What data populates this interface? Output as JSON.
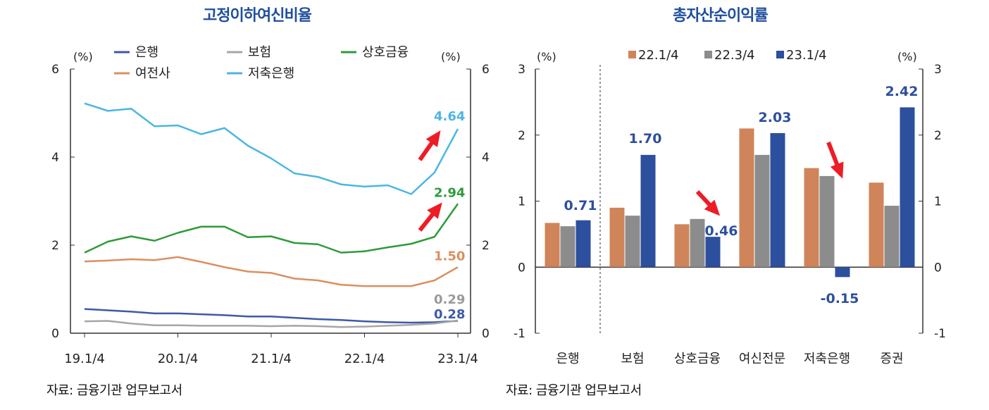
{
  "left": {
    "title": "고정이하여신비율",
    "source": "자료: 금융기관 업무보고서",
    "unit_left": "(%)",
    "unit_right": "(%)"
  },
  "right": {
    "title": "총자산순이익률",
    "source": "자료: 금융기관 업무보고서",
    "unit_left": "(%)",
    "unit_right": "(%)"
  },
  "chart_data": [
    {
      "type": "line",
      "title": "고정이하여신비율",
      "ylabel": "(%)",
      "ylim": [
        0,
        6
      ],
      "yticks": [
        0,
        2,
        4,
        6
      ],
      "x": [
        "19.1/4",
        "19.2/4",
        "19.3/4",
        "19.4/4",
        "20.1/4",
        "20.2/4",
        "20.3/4",
        "20.4/4",
        "21.1/4",
        "21.2/4",
        "21.3/4",
        "21.4/4",
        "22.1/4",
        "22.2/4",
        "22.3/4",
        "22.4/4",
        "23.1/4"
      ],
      "xticks": [
        "19.1/4",
        "20.1/4",
        "21.1/4",
        "22.1/4",
        "23.1/4"
      ],
      "legend": "top",
      "series": [
        {
          "name": "은행",
          "color": "#3d5aa6",
          "values": [
            0.55,
            0.52,
            0.49,
            0.45,
            0.45,
            0.43,
            0.41,
            0.38,
            0.38,
            0.35,
            0.32,
            0.3,
            0.27,
            0.25,
            0.24,
            0.25,
            0.28
          ],
          "end_label": "0.28"
        },
        {
          "name": "보험",
          "color": "#a6a6a6",
          "values": [
            0.27,
            0.28,
            0.22,
            0.18,
            0.18,
            0.17,
            0.17,
            0.17,
            0.16,
            0.17,
            0.16,
            0.14,
            0.15,
            0.17,
            0.19,
            0.22,
            0.29
          ],
          "end_label": "0.29"
        },
        {
          "name": "상호금융",
          "color": "#2e9b3a",
          "values": [
            1.83,
            2.08,
            2.2,
            2.1,
            2.28,
            2.42,
            2.42,
            2.18,
            2.2,
            2.05,
            2.02,
            1.83,
            1.86,
            1.95,
            2.03,
            2.19,
            2.94
          ],
          "end_label": "2.94"
        },
        {
          "name": "여전사",
          "color": "#d9915f",
          "values": [
            1.63,
            1.65,
            1.68,
            1.66,
            1.73,
            1.62,
            1.5,
            1.4,
            1.37,
            1.24,
            1.2,
            1.1,
            1.07,
            1.07,
            1.07,
            1.2,
            1.5
          ],
          "end_label": "1.50"
        },
        {
          "name": "저축은행",
          "color": "#4bb6e2",
          "values": [
            5.22,
            5.05,
            5.1,
            4.7,
            4.72,
            4.52,
            4.66,
            4.26,
            3.97,
            3.63,
            3.55,
            3.38,
            3.33,
            3.36,
            3.16,
            3.65,
            4.64
          ],
          "end_label": "4.64"
        }
      ]
    },
    {
      "type": "bar",
      "title": "총자산순이익률",
      "ylabel": "(%)",
      "ylim": [
        -1,
        3
      ],
      "yticks": [
        -1,
        0,
        1,
        2,
        3
      ],
      "categories": [
        "은행",
        "보험",
        "상호금융",
        "여신전문",
        "저축은행",
        "증권"
      ],
      "legend": "top",
      "series": [
        {
          "name": "22.1/4",
          "color": "#d0845a",
          "values": [
            0.67,
            0.9,
            0.65,
            2.1,
            1.5,
            1.28
          ]
        },
        {
          "name": "22.3/4",
          "color": "#8c8c8c",
          "values": [
            0.62,
            0.78,
            0.73,
            1.7,
            1.38,
            0.93
          ]
        },
        {
          "name": "23.1/4",
          "color": "#2c4f9e",
          "values": [
            0.71,
            1.7,
            0.46,
            2.03,
            -0.15,
            2.42
          ]
        }
      ],
      "data_labels": [
        "0.71",
        "1.70",
        "0.46",
        "2.03",
        "-0.15",
        "2.42"
      ]
    }
  ]
}
